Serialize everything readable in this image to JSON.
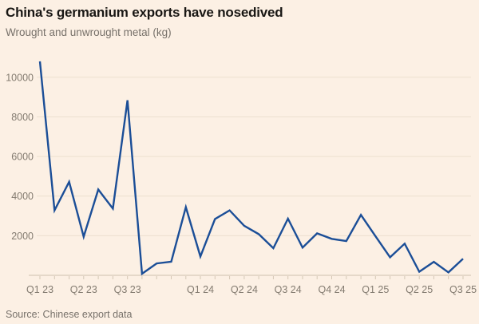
{
  "chart_data": {
    "type": "line",
    "title": "China's germanium exports have nosedived",
    "subtitle": "Wrought and unwrought metal (kg)",
    "source": "Source: Chinese export data",
    "grid": true,
    "legend": "none",
    "y_axis": {
      "tick_labels": [
        "2000",
        "4000",
        "6000",
        "8000",
        "10000"
      ],
      "tick_values": [
        2000,
        4000,
        6000,
        8000,
        10000
      ],
      "range": [
        0,
        10900
      ]
    },
    "x_axis": {
      "monthly_tick_count": 30,
      "quarter_labels": [
        {
          "tick": 0,
          "label": "Q1 23"
        },
        {
          "tick": 3,
          "label": "Q2 23"
        },
        {
          "tick": 6,
          "label": "Q3 23"
        },
        {
          "tick": 11,
          "label": "Q1 24"
        },
        {
          "tick": 14,
          "label": "Q2 24"
        },
        {
          "tick": 17,
          "label": "Q3 24"
        },
        {
          "tick": 20,
          "label": "Q4 24"
        },
        {
          "tick": 23,
          "label": "Q1 25"
        },
        {
          "tick": 26,
          "label": "Q2 25"
        },
        {
          "tick": 29,
          "label": "Q3 25"
        }
      ]
    },
    "series": [
      {
        "name": "Wrought and unwrought metal (kg)",
        "color": "#1b4e97",
        "values": [
          10800,
          3280,
          4720,
          1950,
          4330,
          3370,
          8840,
          80,
          600,
          690,
          3440,
          950,
          2840,
          3280,
          2500,
          2080,
          1370,
          2860,
          1400,
          2120,
          1840,
          1730,
          3050,
          1980,
          910,
          1600,
          180,
          680,
          150,
          840
        ]
      }
    ]
  },
  "colors": {
    "background": "#fcf0e4",
    "line": "#1b4e97",
    "gridline": "#ecdfcf",
    "baseline": "#cec0ae",
    "tick": "#d5c7b5",
    "title_text": "#191714",
    "muted_text": "#77716a",
    "axis_text": "#837b70"
  }
}
